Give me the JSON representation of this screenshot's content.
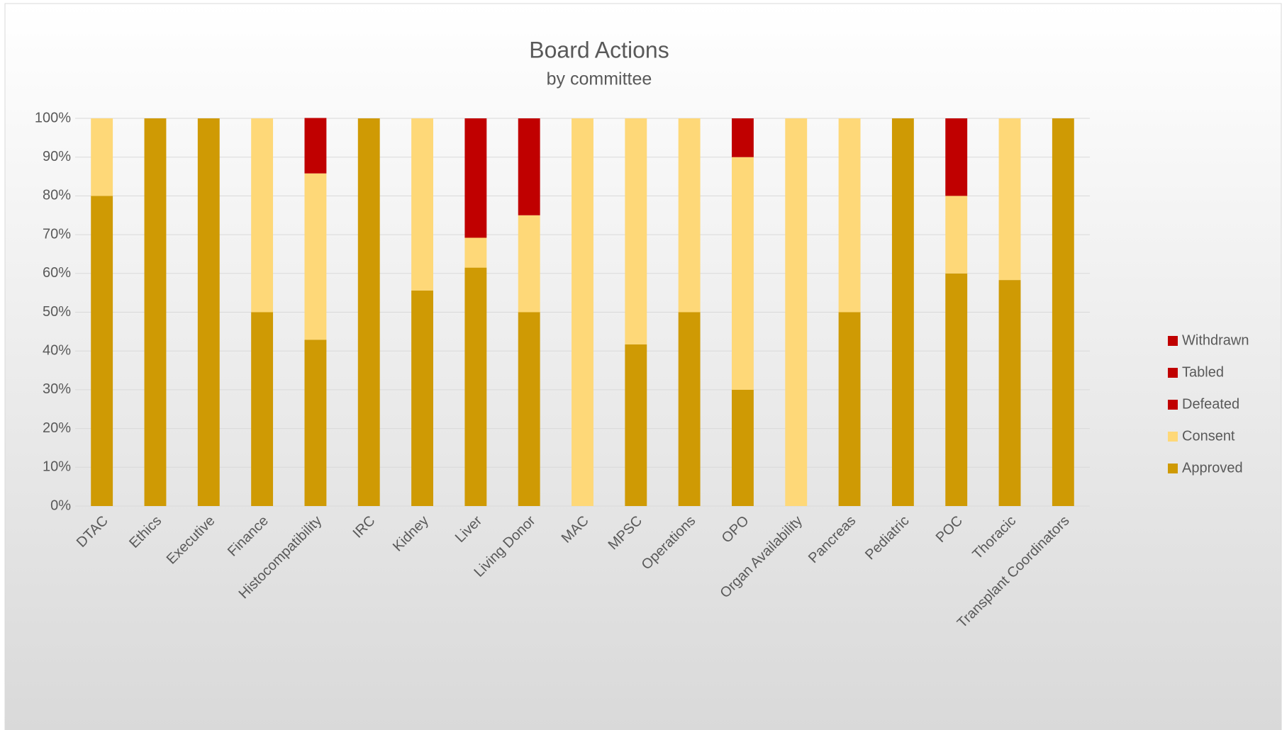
{
  "chart_data": {
    "type": "stacked_bar",
    "title": "Board Actions",
    "subtitle": "by committee",
    "categories": [
      "DTAC",
      "Ethics",
      "Executive",
      "Finance",
      "Histocompatibility",
      "IRC",
      "Kidney",
      "Liver",
      "Living Donor",
      "MAC",
      "MPSC",
      "Operations",
      "OPO",
      "Organ Availability",
      "Pancreas",
      "Pediatric",
      "POC",
      "Thoracic",
      "Transplant Coordinators"
    ],
    "series": [
      {
        "name": "Approved",
        "color": "#cf9a04",
        "values": [
          80,
          100,
          100,
          50,
          42.9,
          100,
          55.6,
          61.5,
          50,
          0,
          41.7,
          50,
          30,
          0,
          50,
          100,
          60,
          58.3,
          100
        ]
      },
      {
        "name": "Consent",
        "color": "#fed878",
        "values": [
          20,
          0,
          0,
          50,
          42.9,
          0,
          44.4,
          7.7,
          25,
          100,
          58.3,
          50,
          60,
          100,
          50,
          0,
          20,
          41.7,
          0
        ]
      },
      {
        "name": "Defeated",
        "color": "#c00000",
        "values": [
          0,
          0,
          0,
          0,
          14.3,
          0,
          0,
          30.8,
          25,
          0,
          0,
          0,
          10,
          0,
          0,
          0,
          20,
          0,
          0
        ]
      },
      {
        "name": "Tabled",
        "color": "#c00000",
        "values": [
          0,
          0,
          0,
          0,
          0,
          0,
          0,
          0,
          0,
          0,
          0,
          0,
          0,
          0,
          0,
          0,
          0,
          0,
          0
        ]
      },
      {
        "name": "Withdrawn",
        "color": "#c00000",
        "values": [
          0,
          0,
          0,
          0,
          0,
          0,
          0,
          0,
          0,
          0,
          0,
          0,
          0,
          0,
          0,
          0,
          0,
          0,
          0
        ]
      }
    ],
    "ylim": [
      0,
      100
    ],
    "yticks": [
      {
        "value": 0,
        "label": "0%"
      },
      {
        "value": 10,
        "label": "10%"
      },
      {
        "value": 20,
        "label": "20%"
      },
      {
        "value": 30,
        "label": "30%"
      },
      {
        "value": 40,
        "label": "40%"
      },
      {
        "value": 50,
        "label": "50%"
      },
      {
        "value": 60,
        "label": "60%"
      },
      {
        "value": 70,
        "label": "70%"
      },
      {
        "value": 80,
        "label": "80%"
      },
      {
        "value": 90,
        "label": "90%"
      },
      {
        "value": 100,
        "label": "100%"
      }
    ],
    "grid": true,
    "legend": "right"
  }
}
